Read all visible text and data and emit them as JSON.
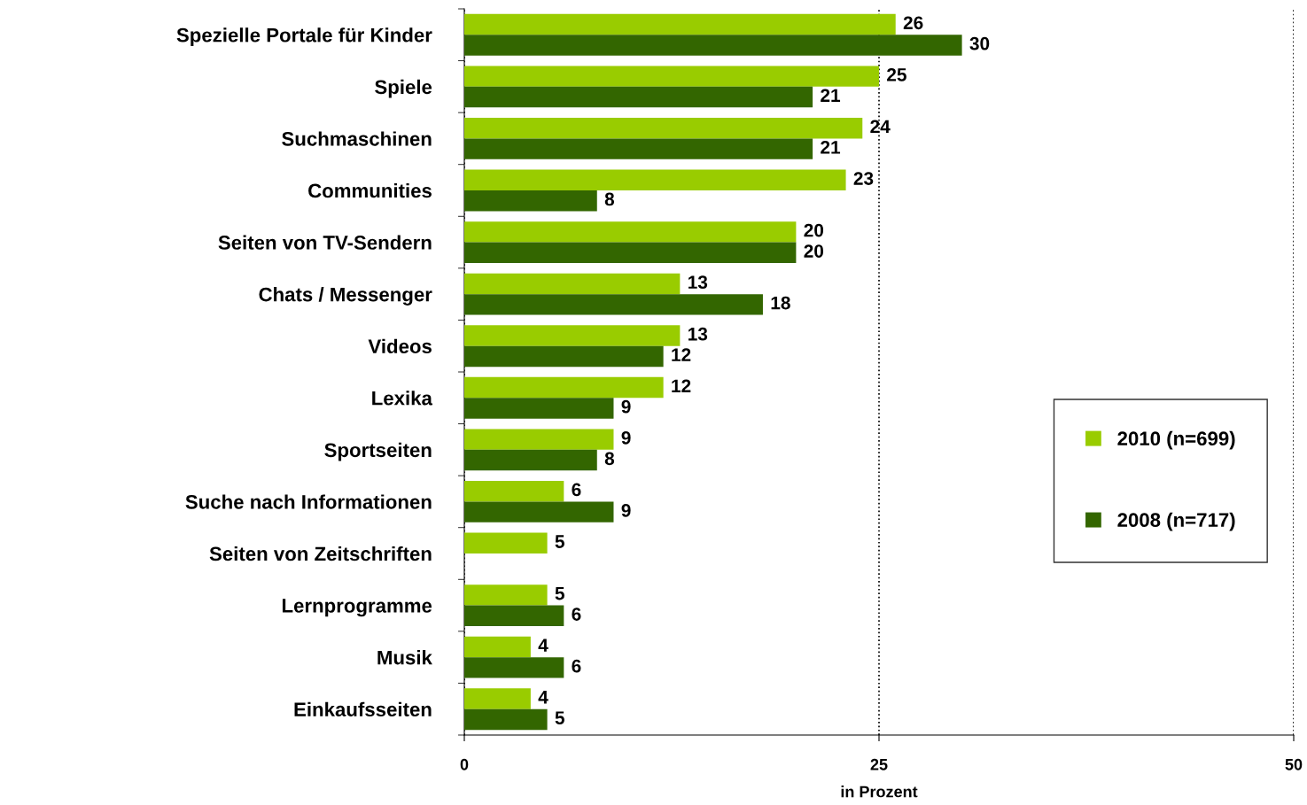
{
  "chart_data": {
    "type": "bar",
    "orientation": "horizontal",
    "xlabel": "in Prozent",
    "categories": [
      "Spezielle Portale für Kinder",
      "Spiele",
      "Suchmaschinen",
      "Communities",
      "Seiten von TV-Sendern",
      "Chats / Messenger",
      "Videos",
      "Lexika",
      "Sportseiten",
      "Suche nach Informationen",
      "Seiten von Zeitschriften",
      "Lernprogramme",
      "Musik",
      "Einkaufsseiten"
    ],
    "series": [
      {
        "name": "2010 (n=699)",
        "color": "#99cc00",
        "values": [
          26,
          25,
          24,
          23,
          20,
          13,
          13,
          12,
          9,
          6,
          5,
          5,
          4,
          4
        ]
      },
      {
        "name": "2008 (n=717)",
        "color": "#336600",
        "values": [
          30,
          21,
          21,
          8,
          20,
          18,
          12,
          9,
          8,
          9,
          null,
          6,
          6,
          5
        ]
      }
    ],
    "xlim": [
      0,
      50
    ],
    "xticks": [
      0,
      25,
      50
    ],
    "grid": "x",
    "legend": "right",
    "data_labels": true
  }
}
